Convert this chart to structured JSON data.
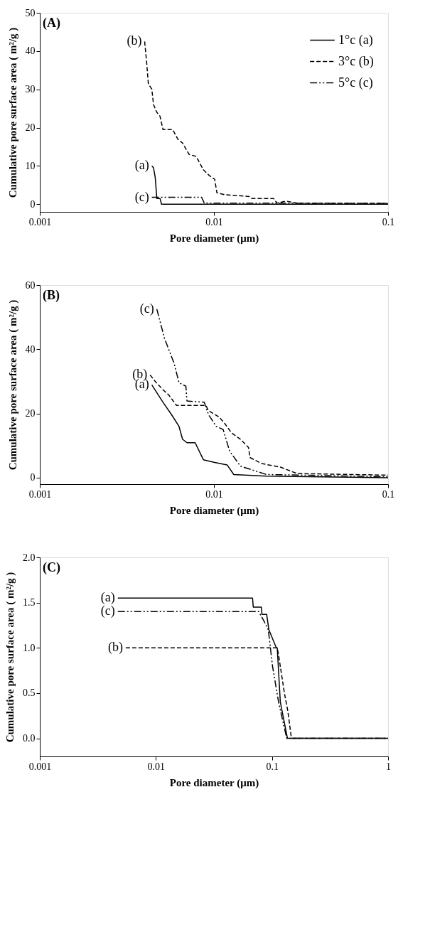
{
  "chart_data": [
    {
      "type": "line",
      "title": "(A)",
      "xlabel": "Pore diameter (μm)",
      "ylabel": "Cumulative pore surface area ( m²/g )",
      "log": "x",
      "grid": false,
      "legend": "top right",
      "xlim": [
        0.001,
        0.1
      ],
      "xticks": [
        0.001,
        0.01,
        0.1
      ],
      "ylim": [
        -2,
        50
      ],
      "yticks": [
        0,
        10,
        20,
        30,
        40,
        50
      ],
      "series": [
        {
          "name": "1°c (a)",
          "color": "#000000",
          "line_style": "solid",
          "x": [
            0.0044,
            0.0045,
            0.0046,
            0.0047,
            0.0049,
            0.005,
            0.1
          ],
          "values": [
            10,
            9.5,
            7,
            1.5,
            1.5,
            0,
            0
          ]
        },
        {
          "name": "3°c (b)",
          "color": "#000000",
          "line_style": "dashed",
          "x": [
            0.004,
            0.0041,
            0.0042,
            0.0044,
            0.0045,
            0.0047,
            0.0049,
            0.0051,
            0.0058,
            0.0062,
            0.0066,
            0.0072,
            0.0079,
            0.0087,
            0.0094,
            0.0101,
            0.0104,
            0.0115,
            0.016,
            0.0165,
            0.022,
            0.023,
            0.026,
            0.03,
            0.1
          ],
          "values": [
            42.5,
            37.5,
            31.5,
            30,
            26,
            24,
            23,
            19.5,
            19.5,
            17,
            16,
            13,
            12.5,
            9,
            7.5,
            6.5,
            3,
            2.5,
            2,
            1.5,
            1.5,
            0.3,
            0.8,
            0.3,
            0.2
          ]
        },
        {
          "name": "5°c (c)",
          "color": "#000000",
          "line_style": "dashdot",
          "x": [
            0.0044,
            0.0085,
            0.0088,
            0.1
          ],
          "values": [
            1.8,
            1.8,
            0.3,
            0.2
          ]
        }
      ],
      "annotations": [
        {
          "text": "(b)",
          "x": 0.004,
          "y": 42.5
        },
        {
          "text": "(a)",
          "x": 0.0044,
          "y": 10
        },
        {
          "text": "(c)",
          "x": 0.0044,
          "y": 1.8
        }
      ]
    },
    {
      "type": "line",
      "title": "(B)",
      "xlabel": "Pore diameter (μm)",
      "ylabel": "Cumulative pore surface area ( m²/g )",
      "log": "x",
      "grid": false,
      "legend": "top right",
      "xlim": [
        0.001,
        0.1
      ],
      "xticks": [
        0.001,
        0.01,
        0.1
      ],
      "ylim": [
        -2,
        60
      ],
      "yticks": [
        0,
        20,
        40,
        60
      ],
      "series": [
        {
          "name": "1°c (a)",
          "color": "#000000",
          "line_style": "solid",
          "x": [
            0.0044,
            0.0051,
            0.0057,
            0.0063,
            0.0066,
            0.007,
            0.0078,
            0.0087,
            0.01,
            0.0119,
            0.013,
            0.02,
            0.1
          ],
          "values": [
            28.9,
            23.5,
            19.7,
            16,
            12,
            10.9,
            10.9,
            5.6,
            4.8,
            4,
            1,
            0.5,
            0
          ]
        },
        {
          "name": "3°c (b)",
          "color": "#000000",
          "line_style": "dashed",
          "x": [
            0.0043,
            0.0046,
            0.0051,
            0.0055,
            0.0061,
            0.009,
            0.0093,
            0.0107,
            0.0115,
            0.0126,
            0.0142,
            0.0158,
            0.0161,
            0.0188,
            0.0241,
            0.03,
            0.1
          ],
          "values": [
            32,
            30,
            27.4,
            25.8,
            22.5,
            22.5,
            20.9,
            18.9,
            17,
            14,
            12,
            9.4,
            6.3,
            4.4,
            3.3,
            1.3,
            0.8
          ]
        },
        {
          "name": "5°c (c)",
          "color": "#000000",
          "line_style": "dashdot",
          "x": [
            0.0047,
            0.0052,
            0.0059,
            0.0063,
            0.0069,
            0.007,
            0.0088,
            0.0093,
            0.0103,
            0.0113,
            0.0123,
            0.013,
            0.0142,
            0.02,
            0.1
          ],
          "values": [
            52.5,
            43.4,
            35.7,
            29.6,
            28.5,
            23.9,
            23.5,
            19.7,
            16,
            15,
            8.3,
            6.5,
            3.6,
            1,
            0.3
          ]
        }
      ],
      "annotations": [
        {
          "text": "(c)",
          "x": 0.0047,
          "y": 52.5
        },
        {
          "text": "(b)",
          "x": 0.0043,
          "y": 32
        },
        {
          "text": "(a)",
          "x": 0.0044,
          "y": 28.9
        }
      ]
    },
    {
      "type": "line",
      "title": "(C)",
      "xlabel": "Pore diameter (μm)",
      "ylabel": "Cumulative pore surface area ( m²/g )",
      "log": "x",
      "grid": false,
      "legend": "top right",
      "xlim": [
        0.001,
        1
      ],
      "xticks": [
        0.001,
        0.01,
        0.1,
        1
      ],
      "ylim": [
        -0.2,
        2.0
      ],
      "yticks": [
        {
          "value": 0,
          "label": "0.0"
        },
        0.5,
        {
          "value": 1,
          "label": "1.0"
        },
        1.5,
        {
          "value": 2,
          "label": "2.0"
        }
      ],
      "series": [
        {
          "name": "1°c (a)",
          "color": "#000000",
          "line_style": "solid",
          "x": [
            0.0047,
            0.068,
            0.069,
            0.081,
            0.082,
            0.09,
            0.094,
            0.109,
            0.111,
            0.118,
            0.136,
            1
          ],
          "values": [
            1.55,
            1.55,
            1.45,
            1.45,
            1.37,
            1.37,
            1.2,
            1.0,
            1.0,
            0.4,
            0,
            0
          ]
        },
        {
          "name": "3°c (b)",
          "color": "#000000",
          "line_style": "dashed",
          "x": [
            0.0055,
            0.111,
            0.114,
            0.128,
            0.137,
            0.146,
            0.149,
            1
          ],
          "values": [
            1.0,
            1.0,
            0.92,
            0.5,
            0.3,
            0.03,
            0,
            0
          ]
        },
        {
          "name": "5°c (c)",
          "color": "#000000",
          "line_style": "dashdot",
          "x": [
            0.0047,
            0.077,
            0.085,
            0.093,
            0.101,
            0.114,
            0.134,
            1
          ],
          "values": [
            1.4,
            1.4,
            1.3,
            1.2,
            0.8,
            0.4,
            0,
            0
          ]
        }
      ],
      "annotations": [
        {
          "text": "(a)",
          "x": 0.0047,
          "y": 1.55
        },
        {
          "text": "(c)",
          "x": 0.0047,
          "y": 1.4
        },
        {
          "text": "(b)",
          "x": 0.0055,
          "y": 1.0
        }
      ]
    }
  ]
}
